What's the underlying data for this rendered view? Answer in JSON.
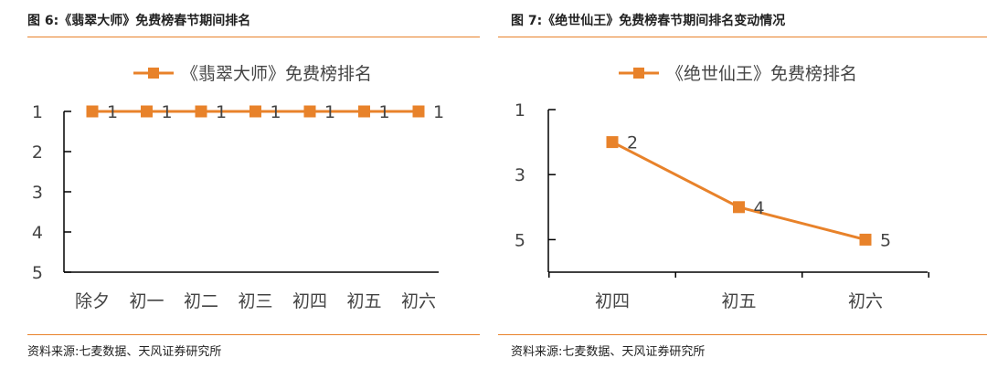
{
  "colors": {
    "accent": "#E8822A",
    "axis": "#000000",
    "text": "#444444"
  },
  "figures": [
    {
      "title": "图 6:《翡翠大师》免费榜春节期间排名",
      "source": "资料来源:七麦数据、天风证券研究所"
    },
    {
      "title": "图 7:《绝世仙王》免费榜春节期间排名变动情况",
      "source": "资料来源:七麦数据、天风证券研究所"
    }
  ],
  "chart_data": [
    {
      "type": "line",
      "categories": [
        "除夕",
        "初一",
        "初二",
        "初三",
        "初四",
        "初五",
        "初六"
      ],
      "series": [
        {
          "name": "《翡翠大师》免费榜排名",
          "values": [
            1,
            1,
            1,
            1,
            1,
            1,
            1
          ],
          "color": "#E8822A",
          "marker": "square"
        }
      ],
      "data_labels": [
        "1",
        "1",
        "1",
        "1",
        "1",
        "1",
        "1"
      ],
      "y_ticks": [
        "1",
        "2",
        "3",
        "4",
        "5"
      ],
      "ylim": [
        1,
        5
      ],
      "y_reversed": true,
      "legend": "top-center",
      "grid": false
    },
    {
      "type": "line",
      "categories": [
        "初四",
        "初五",
        "初六"
      ],
      "series": [
        {
          "name": "《绝世仙王》免费榜排名",
          "values": [
            2,
            4,
            5
          ],
          "color": "#E8822A",
          "marker": "square"
        }
      ],
      "data_labels": [
        "2",
        "4",
        "5"
      ],
      "y_ticks": [
        "1",
        "3",
        "5"
      ],
      "ylim": [
        1,
        6
      ],
      "y_reversed": true,
      "legend": "top-center",
      "grid": false
    }
  ]
}
